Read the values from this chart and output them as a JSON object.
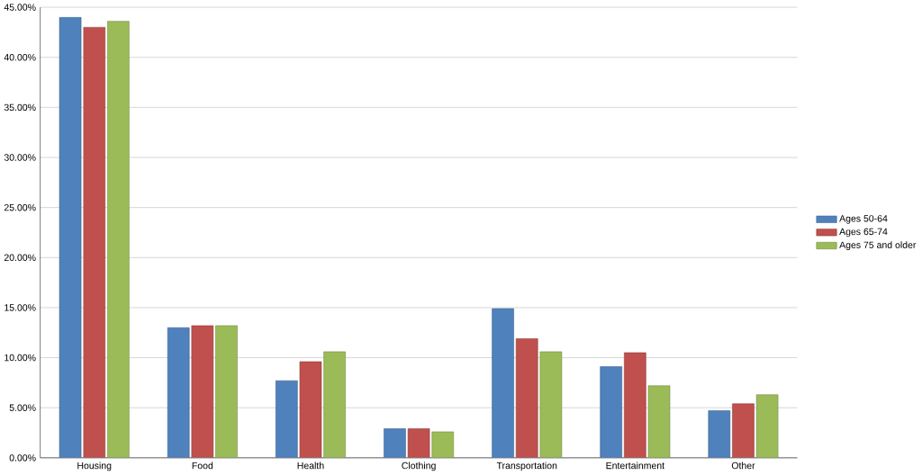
{
  "chart_data": {
    "type": "bar",
    "categories": [
      "Housing",
      "Food",
      "Health",
      "Clothing",
      "Transportation",
      "Entertainment",
      "Other"
    ],
    "series": [
      {
        "name": "Ages 50-64",
        "color": "#4f81bd",
        "values": [
          44.0,
          13.0,
          7.7,
          2.9,
          14.9,
          9.1,
          4.7
        ]
      },
      {
        "name": "Ages 65-74",
        "color": "#c0504d",
        "values": [
          43.0,
          13.2,
          9.6,
          2.9,
          11.9,
          10.5,
          5.4
        ]
      },
      {
        "name": "Ages 75 and older",
        "color": "#9bbb59",
        "values": [
          43.6,
          13.2,
          10.6,
          2.6,
          10.6,
          7.2,
          6.3
        ]
      }
    ],
    "ylim": [
      0,
      45
    ],
    "yticks": [
      {
        "value": 0,
        "label": "0.00%"
      },
      {
        "value": 5,
        "label": "5.00%"
      },
      {
        "value": 10,
        "label": "10.00%"
      },
      {
        "value": 15,
        "label": "15.00%"
      },
      {
        "value": 20,
        "label": "20.00%"
      },
      {
        "value": 25,
        "label": "25.00%"
      },
      {
        "value": 30,
        "label": "30.00%"
      },
      {
        "value": 35,
        "label": "35.00%"
      },
      {
        "value": 40,
        "label": "40.00%"
      },
      {
        "value": 45,
        "label": "45.00%"
      }
    ],
    "grid": "y",
    "legend": "right"
  }
}
